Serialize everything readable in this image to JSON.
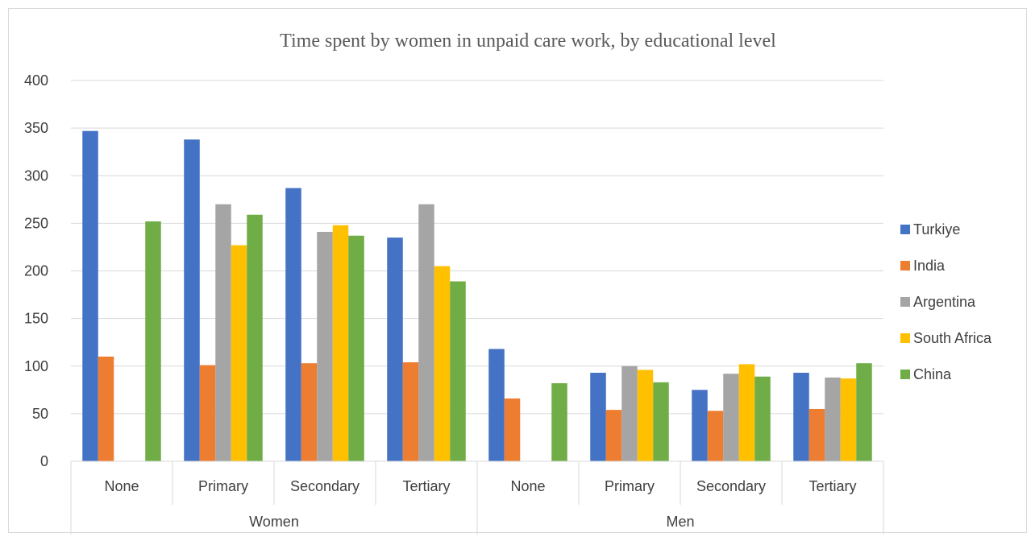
{
  "chart_data": {
    "type": "bar",
    "title": "Time spent by women in unpaid care work, by educational level",
    "xlabel": "",
    "ylabel": "",
    "ylim": [
      0,
      400
    ],
    "yticks": [
      0,
      50,
      100,
      150,
      200,
      250,
      300,
      350,
      400
    ],
    "grid": true,
    "legend_position": "right",
    "groups": [
      {
        "label": "Women",
        "categories": [
          "None",
          "Primary",
          "Secondary",
          "Tertiary"
        ]
      },
      {
        "label": "Men",
        "categories": [
          "None",
          "Primary",
          "Secondary",
          "Tertiary"
        ]
      }
    ],
    "categories": [
      "None",
      "Primary",
      "Secondary",
      "Tertiary",
      "None",
      "Primary",
      "Secondary",
      "Tertiary"
    ],
    "series": [
      {
        "name": "Turkiye",
        "color": "#4472C4",
        "values": [
          347,
          338,
          287,
          235,
          118,
          93,
          75,
          93
        ]
      },
      {
        "name": "India",
        "color": "#ED7D31",
        "values": [
          110,
          101,
          103,
          104,
          66,
          54,
          53,
          55
        ]
      },
      {
        "name": "Argentina",
        "color": "#A5A5A5",
        "values": [
          null,
          270,
          241,
          270,
          null,
          100,
          92,
          88
        ]
      },
      {
        "name": "South Africa",
        "color": "#FFC000",
        "values": [
          null,
          227,
          248,
          205,
          null,
          96,
          102,
          87
        ]
      },
      {
        "name": "China",
        "color": "#70AD47",
        "values": [
          252,
          259,
          237,
          189,
          82,
          83,
          89,
          103
        ]
      }
    ]
  }
}
